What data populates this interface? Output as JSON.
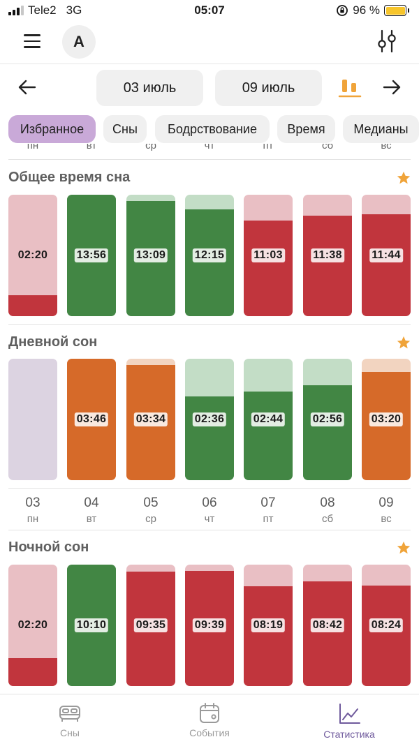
{
  "status_bar": {
    "carrier": "Tele2",
    "network": "3G",
    "time": "05:07",
    "battery": "96 %"
  },
  "header": {
    "avatar_letter": "A"
  },
  "date_range": {
    "start": "03 июль",
    "end": "09 июль"
  },
  "tabs": [
    "Избранное",
    "Сны",
    "Бодрствование",
    "Время",
    "Медианы"
  ],
  "peek_weekdays": [
    "пн",
    "вт",
    "ср",
    "чт",
    "пт",
    "сб",
    "вс"
  ],
  "colors": {
    "green": "#428644",
    "green_light": "#c3ddc6",
    "red": "#c1353d",
    "red_light": "#e9bfc4",
    "orange": "#d66a29",
    "orange_light": "#f2d4c0",
    "empty": "#dcd3e1",
    "star": "#f0a43a",
    "active_tab": "#c9a9d8"
  },
  "sections": [
    {
      "title": "Общее время сна",
      "bars": [
        {
          "value": "02:20",
          "fill": 0.17,
          "color": "red"
        },
        {
          "value": "13:56",
          "fill": 1.0,
          "color": "green"
        },
        {
          "value": "13:09",
          "fill": 0.95,
          "color": "green"
        },
        {
          "value": "12:15",
          "fill": 0.88,
          "color": "green"
        },
        {
          "value": "11:03",
          "fill": 0.79,
          "color": "red"
        },
        {
          "value": "11:38",
          "fill": 0.83,
          "color": "red"
        },
        {
          "value": "11:44",
          "fill": 0.84,
          "color": "red"
        }
      ]
    },
    {
      "title": "Дневной сон",
      "bars": [
        {
          "value": "",
          "fill": 0.0,
          "color": "empty"
        },
        {
          "value": "03:46",
          "fill": 1.0,
          "color": "orange"
        },
        {
          "value": "03:34",
          "fill": 0.95,
          "color": "orange"
        },
        {
          "value": "02:36",
          "fill": 0.69,
          "color": "green"
        },
        {
          "value": "02:44",
          "fill": 0.73,
          "color": "green"
        },
        {
          "value": "02:56",
          "fill": 0.78,
          "color": "green"
        },
        {
          "value": "03:20",
          "fill": 0.89,
          "color": "orange"
        }
      ]
    },
    {
      "title": "Ночной сон",
      "bars": [
        {
          "value": "02:20",
          "fill": 0.23,
          "color": "red"
        },
        {
          "value": "10:10",
          "fill": 1.0,
          "color": "green"
        },
        {
          "value": "09:35",
          "fill": 0.94,
          "color": "red"
        },
        {
          "value": "09:39",
          "fill": 0.95,
          "color": "red"
        },
        {
          "value": "08:19",
          "fill": 0.82,
          "color": "red"
        },
        {
          "value": "08:42",
          "fill": 0.86,
          "color": "red"
        },
        {
          "value": "08:24",
          "fill": 0.83,
          "color": "red"
        }
      ]
    }
  ],
  "days": [
    {
      "num": "03",
      "wd": "пн"
    },
    {
      "num": "04",
      "wd": "вт"
    },
    {
      "num": "05",
      "wd": "ср"
    },
    {
      "num": "06",
      "wd": "чт"
    },
    {
      "num": "07",
      "wd": "пт"
    },
    {
      "num": "08",
      "wd": "сб"
    },
    {
      "num": "09",
      "wd": "вс"
    }
  ],
  "bottom_nav": [
    {
      "label": "Сны",
      "icon": "bed-icon",
      "active": false
    },
    {
      "label": "События",
      "icon": "calendar-icon",
      "active": false
    },
    {
      "label": "Статистика",
      "icon": "chart-line-icon",
      "active": true
    }
  ]
}
